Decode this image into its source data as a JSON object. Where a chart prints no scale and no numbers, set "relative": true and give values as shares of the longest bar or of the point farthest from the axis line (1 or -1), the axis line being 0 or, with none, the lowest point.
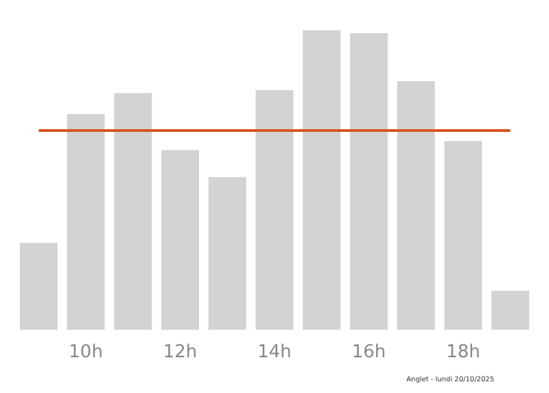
{
  "chart_data": {
    "type": "bar",
    "relative": true,
    "categories": [
      null,
      "10h",
      null,
      "12h",
      null,
      "14h",
      null,
      "16h",
      null,
      "18h",
      null
    ],
    "values": [
      0.29,
      0.72,
      0.79,
      0.6,
      0.51,
      0.8,
      1,
      0.99,
      0.83,
      0.63,
      0.13
    ],
    "color": "#d3d3d3",
    "ref_lines": [
      {
        "axis": "y",
        "value": 0.665,
        "color": "#d9541e"
      }
    ],
    "annotations": [
      "Anglet - lundi 20/10/2025"
    ]
  }
}
